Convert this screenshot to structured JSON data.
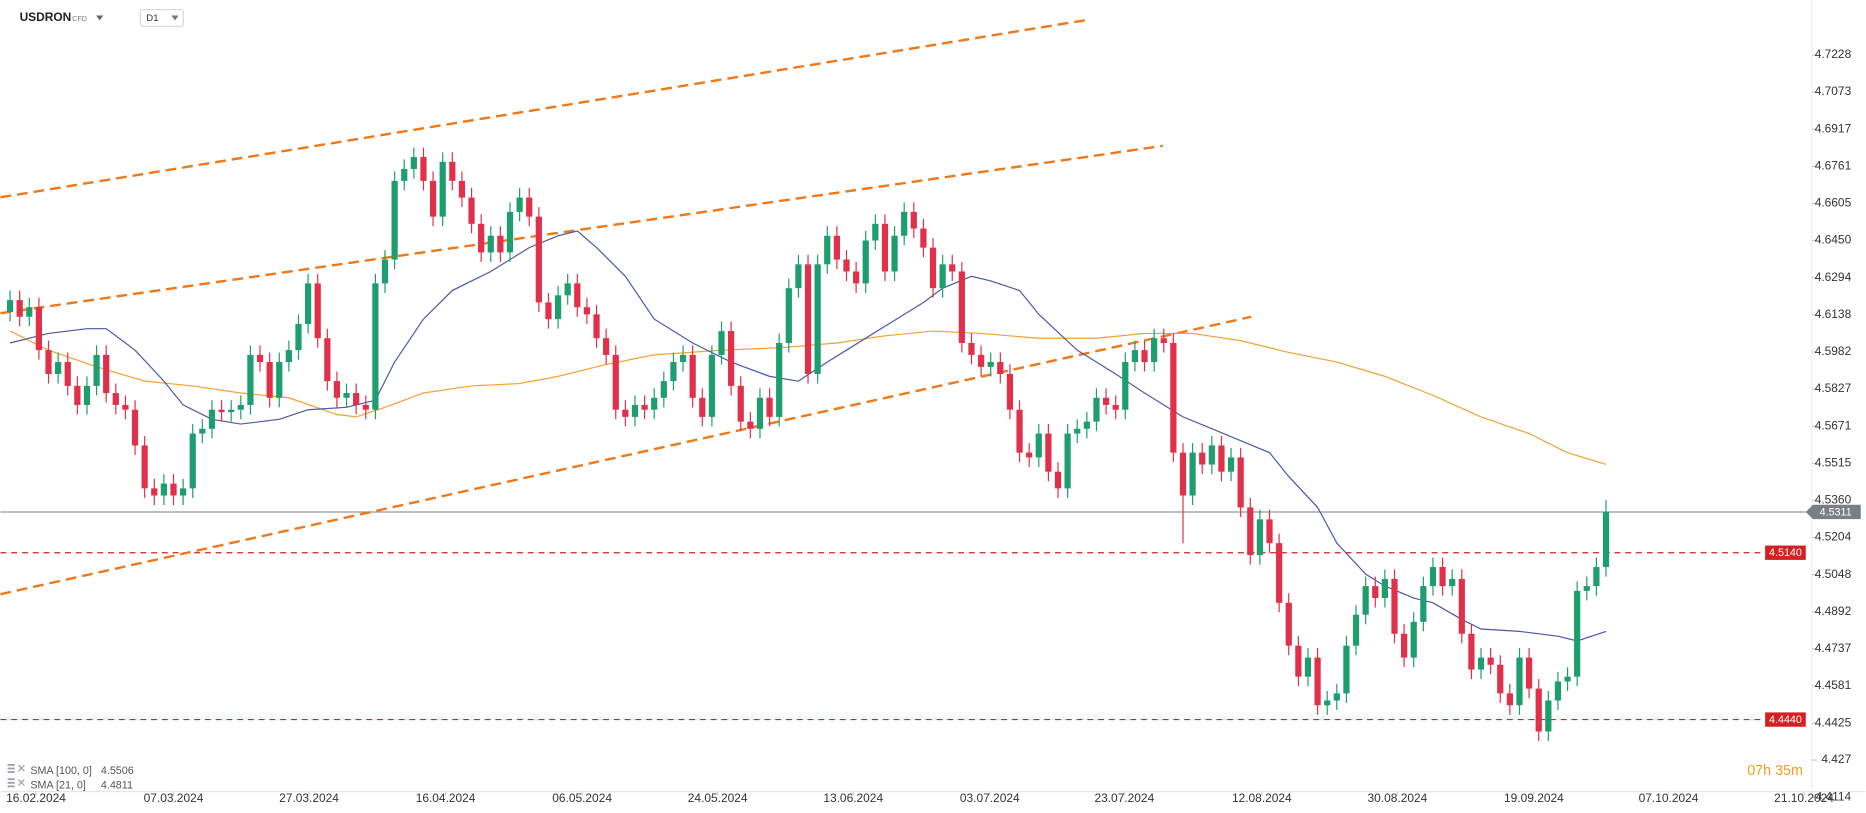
{
  "chart_data": {
    "type": "candlestick",
    "symbol": "USDRON",
    "instrument": "CFD",
    "timeframe": "D1",
    "countdown": "07h 35m",
    "xlim": [
      -1,
      187.4
    ],
    "ylim": [
      4.4048,
      4.7459
    ],
    "yticks": [
      4.7228,
      4.7073,
      4.6917,
      4.6761,
      4.6605,
      {
        "value": 4.645,
        "label": "4.6450"
      },
      4.6294,
      4.6138,
      4.5982,
      4.5827,
      4.5671,
      4.5515,
      {
        "value": 4.536,
        "label": "4.5360"
      },
      4.5204,
      4.5048,
      4.4892,
      4.4737,
      4.4581,
      4.4425,
      4.427,
      4.4114
    ],
    "xticks": [
      {
        "value": 2.7,
        "label": "16.02.2024"
      },
      {
        "value": 17.0,
        "label": "07.03.2024"
      },
      {
        "value": 31.1,
        "label": "27.03.2024"
      },
      {
        "value": 45.3,
        "label": "16.04.2024"
      },
      {
        "value": 59.5,
        "label": "06.05.2024"
      },
      {
        "value": 73.6,
        "label": "24.05.2024"
      },
      {
        "value": 87.7,
        "label": "13.06.2024"
      },
      {
        "value": 101.9,
        "label": "03.07.2024"
      },
      {
        "value": 115.9,
        "label": "23.07.2024"
      },
      {
        "value": 130.2,
        "label": "12.08.2024"
      },
      {
        "value": 144.3,
        "label": "30.08.2024"
      },
      {
        "value": 158.5,
        "label": "19.09.2024"
      },
      {
        "value": 172.5,
        "label": "07.10.2024"
      },
      {
        "value": 186.6,
        "label": "21.10.2024"
      }
    ],
    "up_color": "#1e9e6e",
    "down_color": "#e0304a",
    "candles": {
      "open": [
        4.615,
        4.62,
        4.613,
        4.617,
        4.599,
        4.589,
        4.594,
        4.584,
        4.576,
        4.584,
        4.597,
        4.581,
        4.576,
        4.574,
        4.559,
        4.541,
        4.538,
        4.543,
        4.538,
        4.541,
        4.564,
        4.566,
        4.574,
        4.573,
        4.574,
        4.576,
        4.597,
        4.594,
        4.579,
        4.594,
        4.599,
        4.61,
        4.627,
        4.604,
        4.586,
        4.579,
        4.581,
        4.576,
        4.574,
        4.627,
        4.637,
        4.67,
        4.675,
        4.68,
        4.67,
        4.655,
        4.678,
        4.67,
        4.663,
        4.652,
        4.64,
        4.647,
        4.64,
        4.657,
        4.663,
        4.655,
        4.619,
        4.612,
        4.622,
        4.627,
        4.617,
        4.614,
        4.604,
        4.597,
        4.574,
        4.571,
        4.576,
        4.574,
        4.579,
        4.586,
        4.594,
        4.597,
        4.579,
        4.571,
        4.597,
        4.607,
        4.584,
        4.569,
        4.566,
        4.579,
        4.571,
        4.602,
        4.625,
        4.635,
        4.589,
        4.635,
        4.647,
        4.637,
        4.632,
        4.627,
        4.645,
        4.652,
        4.632,
        4.647,
        4.657,
        4.65,
        4.642,
        4.625,
        4.635,
        4.632,
        4.602,
        4.597,
        4.592,
        4.594,
        4.589,
        4.574,
        4.556,
        4.554,
        4.564,
        4.548,
        4.541,
        4.564,
        4.566,
        4.569,
        4.579,
        4.576,
        4.574,
        4.594,
        4.599,
        4.594,
        4.604,
        4.602,
        4.556,
        4.538,
        4.556,
        4.551,
        4.559,
        4.548,
        4.554,
        4.533,
        4.513,
        4.528,
        4.518,
        4.493,
        4.475,
        4.462,
        4.47,
        4.45,
        4.452,
        4.455,
        4.475,
        4.488,
        4.5,
        4.495,
        4.503,
        4.48,
        4.47,
        4.485,
        4.5,
        4.508,
        4.5,
        4.503,
        4.48,
        4.465,
        4.47,
        4.467,
        4.455,
        4.45,
        4.47,
        4.457,
        4.439,
        4.452,
        4.46,
        4.462,
        4.498,
        4.5,
        4.508
      ],
      "high": [
        4.624,
        4.624,
        4.621,
        4.621,
        4.603,
        4.598,
        4.598,
        4.588,
        4.588,
        4.601,
        4.601,
        4.585,
        4.58,
        4.578,
        4.563,
        4.545,
        4.547,
        4.547,
        4.545,
        4.568,
        4.57,
        4.578,
        4.578,
        4.578,
        4.58,
        4.601,
        4.601,
        4.598,
        4.598,
        4.603,
        4.614,
        4.631,
        4.631,
        4.608,
        4.59,
        4.585,
        4.585,
        4.58,
        4.631,
        4.641,
        4.674,
        4.679,
        4.684,
        4.684,
        4.674,
        4.682,
        4.682,
        4.674,
        4.667,
        4.656,
        4.651,
        4.651,
        4.661,
        4.667,
        4.667,
        4.659,
        4.623,
        4.626,
        4.631,
        4.631,
        4.621,
        4.618,
        4.608,
        4.601,
        4.578,
        4.58,
        4.58,
        4.583,
        4.59,
        4.598,
        4.601,
        4.601,
        4.583,
        4.601,
        4.611,
        4.611,
        4.588,
        4.573,
        4.583,
        4.583,
        4.606,
        4.629,
        4.639,
        4.639,
        4.639,
        4.651,
        4.651,
        4.641,
        4.636,
        4.649,
        4.656,
        4.656,
        4.651,
        4.661,
        4.661,
        4.654,
        4.646,
        4.639,
        4.639,
        4.636,
        4.606,
        4.601,
        4.598,
        4.598,
        4.593,
        4.578,
        4.56,
        4.568,
        4.568,
        4.552,
        4.568,
        4.57,
        4.573,
        4.583,
        4.583,
        4.58,
        4.598,
        4.603,
        4.603,
        4.608,
        4.608,
        4.606,
        4.56,
        4.56,
        4.56,
        4.563,
        4.563,
        4.558,
        4.558,
        4.537,
        4.532,
        4.532,
        4.522,
        4.497,
        4.479,
        4.474,
        4.474,
        4.456,
        4.459,
        4.479,
        4.492,
        4.504,
        4.504,
        4.507,
        4.507,
        4.484,
        4.489,
        4.504,
        4.512,
        4.512,
        4.507,
        4.507,
        4.484,
        4.474,
        4.474,
        4.471,
        4.459,
        4.474,
        4.474,
        4.461,
        4.456,
        4.464,
        4.466,
        4.502,
        4.504,
        4.512,
        4.536
      ],
      "low": [
        4.611,
        4.609,
        4.609,
        4.595,
        4.585,
        4.585,
        4.58,
        4.572,
        4.572,
        4.58,
        4.577,
        4.572,
        4.57,
        4.555,
        4.537,
        4.534,
        4.534,
        4.534,
        4.534,
        4.537,
        4.56,
        4.562,
        4.569,
        4.569,
        4.57,
        4.572,
        4.59,
        4.575,
        4.575,
        4.59,
        4.595,
        4.606,
        4.6,
        4.582,
        4.575,
        4.575,
        4.572,
        4.57,
        4.57,
        4.623,
        4.633,
        4.666,
        4.671,
        4.666,
        4.651,
        4.651,
        4.666,
        4.659,
        4.648,
        4.636,
        4.636,
        4.636,
        4.636,
        4.653,
        4.651,
        4.615,
        4.608,
        4.608,
        4.618,
        4.613,
        4.61,
        4.6,
        4.593,
        4.57,
        4.567,
        4.567,
        4.57,
        4.57,
        4.575,
        4.582,
        4.59,
        4.575,
        4.567,
        4.567,
        4.593,
        4.58,
        4.565,
        4.562,
        4.562,
        4.567,
        4.567,
        4.598,
        4.621,
        4.585,
        4.585,
        4.631,
        4.633,
        4.628,
        4.623,
        4.623,
        4.641,
        4.628,
        4.628,
        4.643,
        4.646,
        4.638,
        4.621,
        4.621,
        4.628,
        4.598,
        4.593,
        4.588,
        4.588,
        4.585,
        4.57,
        4.552,
        4.55,
        4.55,
        4.544,
        4.537,
        4.537,
        4.56,
        4.562,
        4.565,
        4.572,
        4.57,
        4.57,
        4.59,
        4.59,
        4.59,
        4.598,
        4.552,
        4.518,
        4.534,
        4.547,
        4.547,
        4.544,
        4.544,
        4.529,
        4.509,
        4.509,
        4.514,
        4.489,
        4.471,
        4.458,
        4.458,
        4.446,
        4.446,
        4.448,
        4.451,
        4.471,
        4.484,
        4.491,
        4.491,
        4.476,
        4.466,
        4.466,
        4.481,
        4.496,
        4.496,
        4.496,
        4.476,
        4.461,
        4.461,
        4.463,
        4.451,
        4.446,
        4.446,
        4.453,
        4.435,
        4.435,
        4.448,
        4.456,
        4.458,
        4.494,
        4.496,
        4.504
      ],
      "close": [
        4.62,
        4.613,
        4.617,
        4.599,
        4.589,
        4.594,
        4.584,
        4.576,
        4.584,
        4.597,
        4.581,
        4.576,
        4.574,
        4.559,
        4.541,
        4.538,
        4.543,
        4.538,
        4.541,
        4.564,
        4.566,
        4.574,
        4.573,
        4.574,
        4.576,
        4.597,
        4.594,
        4.579,
        4.594,
        4.599,
        4.61,
        4.627,
        4.604,
        4.586,
        4.579,
        4.581,
        4.576,
        4.574,
        4.627,
        4.637,
        4.67,
        4.675,
        4.68,
        4.67,
        4.655,
        4.678,
        4.67,
        4.663,
        4.652,
        4.64,
        4.647,
        4.64,
        4.657,
        4.663,
        4.655,
        4.619,
        4.612,
        4.622,
        4.627,
        4.617,
        4.614,
        4.604,
        4.597,
        4.574,
        4.571,
        4.576,
        4.574,
        4.579,
        4.586,
        4.594,
        4.597,
        4.579,
        4.571,
        4.597,
        4.607,
        4.584,
        4.569,
        4.566,
        4.579,
        4.571,
        4.602,
        4.625,
        4.635,
        4.589,
        4.635,
        4.647,
        4.637,
        4.632,
        4.627,
        4.645,
        4.652,
        4.632,
        4.647,
        4.657,
        4.65,
        4.642,
        4.625,
        4.635,
        4.632,
        4.602,
        4.597,
        4.592,
        4.594,
        4.589,
        4.574,
        4.556,
        4.554,
        4.564,
        4.548,
        4.541,
        4.564,
        4.566,
        4.569,
        4.579,
        4.576,
        4.574,
        4.594,
        4.599,
        4.594,
        4.604,
        4.602,
        4.556,
        4.538,
        4.556,
        4.551,
        4.559,
        4.548,
        4.554,
        4.533,
        4.513,
        4.528,
        4.518,
        4.493,
        4.475,
        4.462,
        4.47,
        4.45,
        4.452,
        4.455,
        4.475,
        4.488,
        4.5,
        4.495,
        4.503,
        4.48,
        4.47,
        4.485,
        4.5,
        4.508,
        4.5,
        4.503,
        4.48,
        4.465,
        4.47,
        4.467,
        4.455,
        4.45,
        4.47,
        4.457,
        4.439,
        4.452,
        4.46,
        4.462,
        4.498,
        4.5,
        4.508,
        4.531
      ]
    },
    "series": [
      {
        "name": "SMA [100, 0]",
        "color": "#f5a033",
        "last": 4.5506,
        "x": [
          0,
          4,
          9,
          14,
          19,
          24,
          29,
          34,
          36,
          39,
          43,
          48,
          53,
          57,
          62,
          67,
          74,
          80,
          86,
          91,
          96,
          101,
          107,
          113,
          118,
          123,
          128,
          133,
          138,
          143,
          148,
          153,
          158,
          162,
          166
        ],
        "values": [
          4.607,
          4.599,
          4.592,
          4.586,
          4.584,
          4.581,
          4.579,
          4.572,
          4.571,
          4.575,
          4.581,
          4.584,
          4.585,
          4.588,
          4.593,
          4.597,
          4.599,
          4.6,
          4.602,
          4.605,
          4.607,
          4.606,
          4.604,
          4.604,
          4.606,
          4.606,
          4.603,
          4.598,
          4.594,
          4.588,
          4.58,
          4.571,
          4.564,
          4.556,
          4.551
        ]
      },
      {
        "name": "SMA [21, 0]",
        "color": "#4a58a8",
        "last": 4.4811,
        "x": [
          0,
          4,
          8,
          10,
          13,
          16,
          18,
          21,
          24,
          28,
          31,
          35,
          38,
          40,
          43,
          46,
          50,
          54,
          57,
          59,
          61,
          64,
          67,
          71,
          75,
          79,
          82,
          85,
          87,
          91,
          95,
          97,
          100,
          102,
          105,
          107,
          111,
          115,
          118,
          122,
          125,
          128,
          131,
          133,
          136,
          138,
          141,
          143,
          146,
          148,
          151,
          153,
          157,
          161,
          163,
          166
        ],
        "values": [
          4.602,
          4.606,
          4.608,
          4.608,
          4.599,
          4.586,
          4.576,
          4.57,
          4.568,
          4.57,
          4.574,
          4.575,
          4.578,
          4.594,
          4.612,
          4.624,
          4.632,
          4.642,
          4.647,
          4.649,
          4.642,
          4.63,
          4.612,
          4.602,
          4.594,
          4.588,
          4.586,
          4.594,
          4.599,
          4.609,
          4.619,
          4.625,
          4.63,
          4.628,
          4.624,
          4.614,
          4.599,
          4.589,
          4.581,
          4.571,
          4.566,
          4.561,
          4.556,
          4.546,
          4.533,
          4.518,
          4.505,
          4.5,
          4.495,
          4.493,
          4.486,
          4.482,
          4.481,
          4.479,
          4.477,
          4.481
        ]
      }
    ],
    "trendlines": [
      {
        "color": "#f07818",
        "x": [
          -1,
          112.4
        ],
        "y": [
          4.6631,
          4.7378
        ]
      },
      {
        "color": "#f07818",
        "x": [
          -1,
          119.9
        ],
        "y": [
          4.6145,
          4.6847
        ]
      },
      {
        "color": "#f07818",
        "x": [
          -1,
          129.1
        ],
        "y": [
          4.4966,
          4.613
        ]
      }
    ],
    "levels": [
      {
        "value": 4.514,
        "label": "4.5140",
        "color": "#d42020"
      },
      {
        "value": 4.444,
        "label": "4.4440",
        "color": "#d42020"
      }
    ],
    "last_price": {
      "value": 4.5311,
      "label": "4.5311",
      "color": "#7a7f86"
    }
  }
}
